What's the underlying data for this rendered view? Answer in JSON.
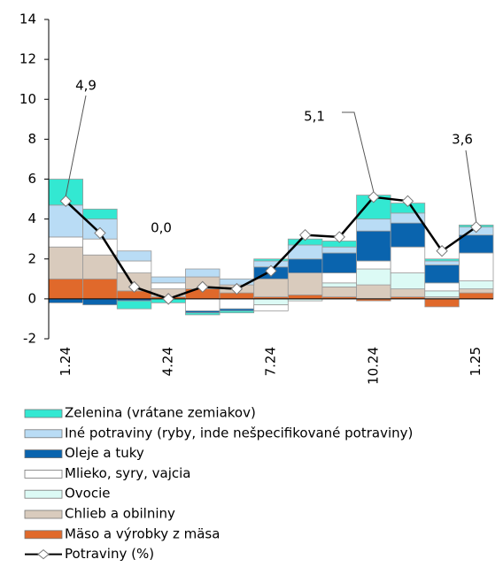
{
  "chart_data": {
    "type": "bar",
    "categories": [
      "1.24",
      null,
      null,
      "4.24",
      null,
      null,
      "7.24",
      null,
      null,
      "10.24",
      null,
      null,
      "1.25"
    ],
    "ylim": [
      -2,
      14
    ],
    "yticks": [
      -2,
      0,
      2,
      4,
      6,
      8,
      10,
      12,
      14
    ],
    "series": [
      {
        "name": "Zelenina (vrátane zemiakov)",
        "color": "#33e8d2",
        "values": [
          1.3,
          0.5,
          -0.4,
          -0.2,
          -0.1,
          -0.1,
          0.1,
          0.3,
          0.3,
          1.2,
          0.5,
          0.1,
          0.1
        ]
      },
      {
        "name": "Iné potraviny (ryby, inde nešpecifikované potraviny)",
        "color": "#b9dcf5",
        "values": [
          1.6,
          1.0,
          0.5,
          0.3,
          0.4,
          0.3,
          0.3,
          0.7,
          0.3,
          0.6,
          0.5,
          0.2,
          0.4
        ]
      },
      {
        "name": "Oleje a tuky",
        "color": "#0a64ae",
        "values": [
          -0.2,
          -0.3,
          -0.1,
          0.0,
          -0.1,
          -0.1,
          0.6,
          0.7,
          1.0,
          1.5,
          1.2,
          0.9,
          0.9
        ]
      },
      {
        "name": "Mlieko, syry, vajcia",
        "color": "#ffffff",
        "values": [
          0.5,
          0.8,
          0.6,
          0.3,
          -0.6,
          -0.5,
          -0.3,
          0.0,
          0.5,
          0.4,
          1.3,
          0.4,
          1.4
        ]
      },
      {
        "name": "Ovocie",
        "color": "#dcfaf5",
        "values": [
          0.0,
          0.0,
          0.0,
          0.0,
          0.0,
          0.0,
          -0.3,
          -0.1,
          0.2,
          0.8,
          0.8,
          0.3,
          0.4
        ]
      },
      {
        "name": "Chlieb a obilniny",
        "color": "#d9cbbd",
        "values": [
          1.6,
          1.2,
          0.9,
          0.4,
          0.6,
          0.4,
          0.9,
          1.1,
          0.5,
          0.7,
          0.4,
          0.1,
          0.2
        ]
      },
      {
        "name": "Mäso a výrobky z mäsa",
        "color": "#e0692b",
        "values": [
          1.0,
          1.0,
          0.4,
          0.1,
          0.5,
          0.3,
          0.1,
          0.2,
          0.1,
          -0.1,
          0.1,
          -0.4,
          0.3
        ]
      }
    ],
    "line_series": {
      "name": "Potraviny (%)",
      "color": "#000000",
      "values": [
        4.9,
        3.3,
        0.6,
        0.0,
        0.6,
        0.5,
        1.4,
        3.2,
        3.1,
        5.1,
        4.9,
        2.4,
        3.6
      ]
    },
    "annotations": [
      "4,9",
      "0,0",
      "5,1",
      "3,6"
    ]
  }
}
